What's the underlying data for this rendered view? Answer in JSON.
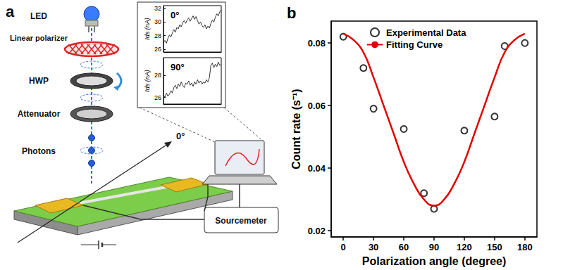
{
  "diagram": {
    "panel_label": "a",
    "labels": [
      "LED",
      "Linear polarizer",
      "HWP",
      "Attenuator",
      "Photons"
    ],
    "direction_label": "0°",
    "instrument": "Sourcemeter"
  },
  "chart_data": [
    {
      "type": "line",
      "title": "0°",
      "ylabel": "Ids (nA)",
      "color": "#000000",
      "marker": "square",
      "tick_labels": "y",
      "grid": false,
      "ylim": [
        25.6,
        32.4
      ],
      "yticks": [
        26,
        28,
        30,
        32
      ],
      "values": [
        27.0,
        27.3,
        26.9,
        27.6,
        28.1,
        27.8,
        28.4,
        28.9,
        28.5,
        29.2,
        29.0,
        29.6,
        29.3,
        29.9,
        30.2,
        29.8,
        30.3,
        30.6,
        30.1,
        30.5,
        30.9,
        30.4,
        30.8,
        30.2,
        29.7,
        30.0,
        29.5,
        29.2,
        29.6,
        29.0,
        29.4,
        29.1,
        29.8,
        30.3,
        30.0,
        30.7,
        31.2,
        30.9,
        31.5,
        31.8
      ]
    },
    {
      "type": "line",
      "title": "90°",
      "ylabel": "Ids (nA)",
      "color": "#000000",
      "marker": "square",
      "tick_labels": "y",
      "grid": false,
      "ylim": [
        25.4,
        29.6
      ],
      "yticks": [
        26,
        28
      ],
      "values": [
        26.2,
        26.0,
        26.4,
        26.1,
        26.3,
        26.6,
        26.4,
        26.9,
        27.1,
        26.8,
        27.2,
        27.0,
        27.4,
        27.1,
        26.9,
        27.3,
        27.2,
        27.5,
        27.1,
        27.3,
        27.0,
        27.4,
        27.2,
        27.6,
        27.3,
        27.5,
        27.2,
        27.4,
        27.3,
        27.6,
        27.4,
        27.8,
        28.9,
        29.1,
        28.7,
        29.0,
        28.8,
        29.2,
        28.9,
        29.0
      ]
    },
    {
      "type": "scatter",
      "annotations": [
        "b"
      ],
      "xlabel": "Polarization angle (degree)",
      "ylabel": "Count rate (s⁻¹)",
      "xlim": [
        -12,
        192
      ],
      "xticks": [
        0,
        30,
        60,
        90,
        120,
        150,
        180
      ],
      "ylim": [
        0.018,
        0.087
      ],
      "yticks": [
        0.02,
        0.04,
        0.06,
        0.08
      ],
      "grid": false,
      "legend": "upper left",
      "series": [
        {
          "name": "Experimental Data",
          "type": "scatter",
          "color": "#000000",
          "marker": "open circle",
          "x": [
            0,
            20,
            30,
            60,
            80,
            90,
            120,
            150,
            160,
            180
          ],
          "values": [
            0.082,
            0.072,
            0.059,
            0.0525,
            0.032,
            0.027,
            0.052,
            0.0565,
            0.079,
            0.08
          ]
        },
        {
          "name": "Fitting Curve",
          "type": "line",
          "color": "#e00000",
          "line_style": "solid",
          "x": [
            0,
            10,
            20,
            30,
            40,
            50,
            60,
            70,
            80,
            90,
            100,
            110,
            120,
            130,
            140,
            150,
            160,
            170,
            180
          ],
          "values": [
            0.083,
            0.081,
            0.077,
            0.069,
            0.06,
            0.051,
            0.042,
            0.035,
            0.03,
            0.028,
            0.03,
            0.035,
            0.042,
            0.051,
            0.06,
            0.069,
            0.077,
            0.081,
            0.083
          ]
        }
      ]
    }
  ]
}
